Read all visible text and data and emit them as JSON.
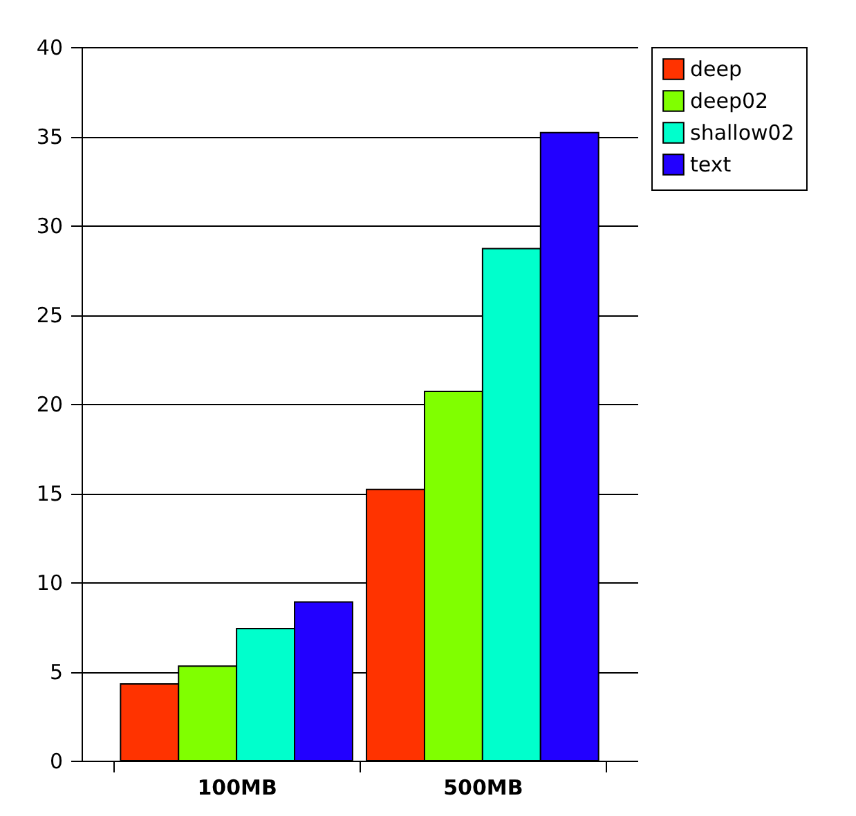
{
  "chart_data": {
    "type": "bar",
    "categories": [
      "100MB",
      "500MB"
    ],
    "series": [
      {
        "name": "deep",
        "color": "#ff3300",
        "values": [
          4.3,
          15.2
        ]
      },
      {
        "name": "deep02",
        "color": "#80ff00",
        "values": [
          5.3,
          20.7
        ]
      },
      {
        "name": "shallow02",
        "color": "#00ffcc",
        "values": [
          7.4,
          28.7
        ]
      },
      {
        "name": "text",
        "color": "#2200ff",
        "values": [
          8.9,
          35.2
        ]
      }
    ],
    "ylim": [
      0,
      40
    ],
    "yticks": [
      0,
      5,
      10,
      15,
      20,
      25,
      30,
      35,
      40
    ],
    "grid": "y",
    "legend": "right"
  }
}
